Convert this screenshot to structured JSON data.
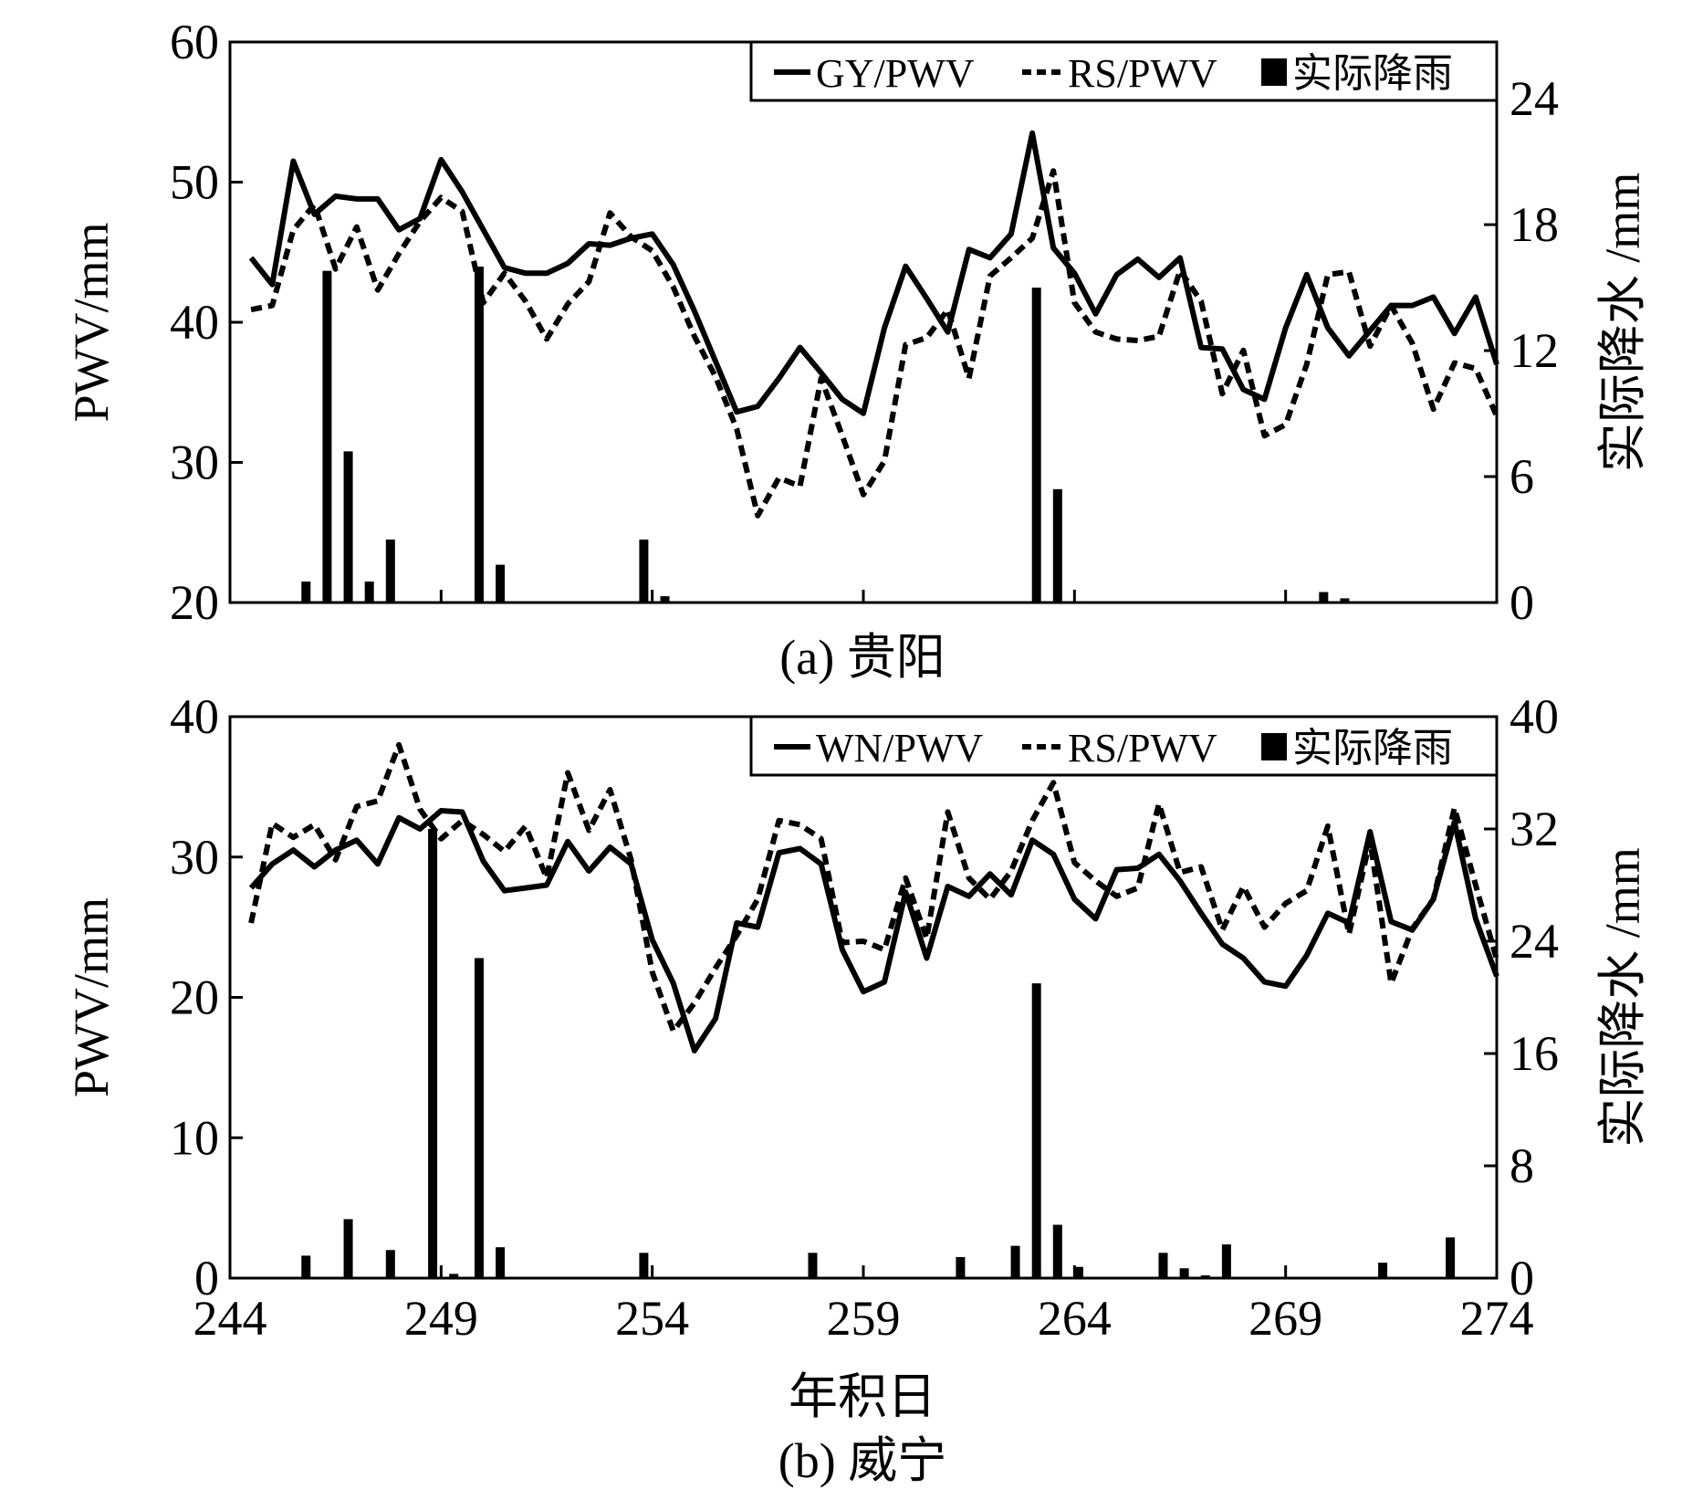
{
  "figure": {
    "x_axis_title": "年积日",
    "x_ticks": [
      "244",
      "249",
      "254",
      "259",
      "264",
      "269",
      "274"
    ]
  },
  "chart_data": [
    {
      "type": "line",
      "caption": "(a) 贵阳",
      "ylabel_left": "PWV/mm",
      "ylabel_right": "实际降水 /mm",
      "xlabel": "",
      "xlim": [
        244,
        274
      ],
      "ylim_left": [
        20,
        60
      ],
      "ylim_right": [
        0,
        26.7
      ],
      "y_ticks_left": [
        "20",
        "30",
        "40",
        "50",
        "60"
      ],
      "y_ticks_right": [
        "0",
        "6",
        "12",
        "18",
        "24"
      ],
      "legend_position": "top-right",
      "x": [
        244.5,
        245.0,
        245.5,
        246.0,
        246.5,
        247.0,
        247.5,
        248.0,
        248.5,
        249.0,
        249.5,
        250.0,
        250.5,
        251.0,
        251.5,
        252.0,
        252.5,
        253.0,
        253.5,
        254.0,
        254.5,
        255.0,
        255.5,
        256.0,
        256.5,
        257.0,
        257.5,
        258.0,
        258.5,
        259.0,
        259.5,
        260.0,
        260.5,
        261.0,
        261.5,
        262.0,
        262.5,
        263.0,
        263.5,
        264.0,
        264.5,
        265.0,
        265.5,
        266.0,
        266.5,
        267.0,
        267.5,
        268.0,
        268.5,
        269.0,
        269.5,
        270.0,
        270.5,
        271.0,
        271.5,
        272.0,
        272.5,
        273.0,
        273.5,
        274.0
      ],
      "series": [
        {
          "name": "GY/PWV",
          "style": "solid",
          "values": [
            44.6,
            42.7,
            51.5,
            47.7,
            49.0,
            48.8,
            48.8,
            46.6,
            47.4,
            51.6,
            49.3,
            46.6,
            43.9,
            43.5,
            43.5,
            44.2,
            45.6,
            45.5,
            46.0,
            46.3,
            44.1,
            40.8,
            37.2,
            33.6,
            34.0,
            36.0,
            38.2,
            36.4,
            34.5,
            33.5,
            39.6,
            44.0,
            41.7,
            39.3,
            45.2,
            44.6,
            46.3,
            53.5,
            45.3,
            43.5,
            40.6,
            43.4,
            44.5,
            43.2,
            44.6,
            38.2,
            38.1,
            35.2,
            34.5,
            39.6,
            43.4,
            39.6,
            37.6,
            39.4,
            41.2,
            41.2,
            41.8,
            39.2,
            41.8,
            37.0
          ]
        },
        {
          "name": "RS/PWV",
          "style": "dashed",
          "values": [
            40.9,
            41.2,
            46.6,
            48.4,
            43.8,
            46.8,
            42.3,
            44.9,
            47.2,
            48.9,
            47.9,
            41.4,
            43.5,
            41.5,
            38.8,
            41.3,
            42.9,
            47.8,
            46.1,
            45.1,
            42.5,
            39.0,
            36.1,
            32.4,
            26.2,
            28.9,
            28.3,
            36.0,
            31.9,
            27.7,
            30.1,
            38.4,
            38.9,
            40.9,
            36.0,
            43.3,
            44.6,
            46.0,
            50.8,
            41.4,
            39.3,
            38.8,
            38.7,
            39.0,
            43.7,
            41.5,
            34.9,
            38.0,
            31.9,
            32.7,
            37.0,
            43.4,
            43.6,
            38.3,
            41.2,
            38.5,
            33.8,
            37.1,
            36.7,
            33.3
          ]
        }
      ],
      "bars": {
        "name": "实际降雨",
        "x": [
          245.8,
          246.3,
          246.8,
          247.3,
          247.8,
          249.9,
          250.4,
          253.8,
          254.3,
          263.1,
          263.6,
          269.9,
          270.4
        ],
        "values": [
          1.0,
          15.8,
          7.2,
          1.0,
          3.0,
          16.0,
          1.8,
          3.0,
          0.3,
          15.0,
          5.4,
          0.5,
          0.2
        ]
      }
    },
    {
      "type": "line",
      "caption": "(b) 威宁",
      "ylabel_left": "PWV/mm",
      "ylabel_right": "实际降水 /mm",
      "xlabel": "年积日",
      "xlim": [
        244,
        274
      ],
      "ylim_left": [
        0,
        40
      ],
      "ylim_right": [
        0,
        40
      ],
      "y_ticks_left": [
        "0",
        "10",
        "20",
        "30",
        "40"
      ],
      "y_ticks_right": [
        "0",
        "8",
        "16",
        "24",
        "32",
        "40"
      ],
      "legend_position": "top-right",
      "x": [
        244.5,
        245.0,
        245.5,
        246.0,
        246.5,
        247.0,
        247.5,
        248.0,
        248.5,
        249.0,
        249.5,
        250.0,
        250.5,
        251.0,
        251.5,
        252.0,
        252.5,
        253.0,
        253.5,
        254.0,
        254.5,
        255.0,
        255.5,
        256.0,
        256.5,
        257.0,
        257.5,
        258.0,
        258.5,
        259.0,
        259.5,
        260.0,
        260.5,
        261.0,
        261.5,
        262.0,
        262.5,
        263.0,
        263.5,
        264.0,
        264.5,
        265.0,
        265.5,
        266.0,
        266.5,
        267.0,
        267.5,
        268.0,
        268.5,
        269.0,
        269.5,
        270.0,
        270.5,
        271.0,
        271.5,
        272.0,
        272.5,
        273.0,
        273.5,
        274.0
      ],
      "series": [
        {
          "name": "WN/PWV",
          "style": "solid",
          "values": [
            27.8,
            29.5,
            30.5,
            29.3,
            30.5,
            31.2,
            29.5,
            32.8,
            32.0,
            33.3,
            33.2,
            29.7,
            27.6,
            27.8,
            28.0,
            31.1,
            29.0,
            30.7,
            29.5,
            24.1,
            21.0,
            16.2,
            18.5,
            25.3,
            25.0,
            30.3,
            30.6,
            29.5,
            23.4,
            20.4,
            21.1,
            27.5,
            22.8,
            27.9,
            27.2,
            28.8,
            27.3,
            31.2,
            30.2,
            27.0,
            25.6,
            29.1,
            29.2,
            30.2,
            28.3,
            26.0,
            23.8,
            22.8,
            21.1,
            20.8,
            23.0,
            26.0,
            25.3,
            31.8,
            25.4,
            24.8,
            27.0,
            32.5,
            25.6,
            21.5
          ]
        },
        {
          "name": "RS/PWV",
          "style": "dashed",
          "values": [
            25.3,
            32.4,
            31.4,
            32.3,
            29.8,
            33.6,
            34.0,
            38.0,
            33.4,
            31.3,
            32.6,
            31.6,
            30.4,
            32.2,
            28.5,
            36.0,
            31.9,
            34.8,
            29.8,
            21.8,
            17.6,
            19.6,
            22.1,
            24.4,
            27.0,
            32.6,
            32.3,
            31.3,
            23.9,
            24.0,
            23.4,
            28.5,
            24.2,
            33.2,
            28.5,
            27.0,
            29.0,
            32.6,
            35.3,
            29.6,
            28.3,
            27.2,
            27.8,
            33.8,
            28.9,
            29.3,
            24.8,
            27.9,
            25.0,
            26.7,
            27.6,
            32.2,
            24.5,
            31.2,
            21.0,
            24.9,
            27.0,
            33.5,
            28.0,
            22.7
          ]
        }
      ],
      "bars": {
        "name": "实际降雨",
        "x": [
          245.8,
          246.8,
          247.8,
          248.8,
          249.3,
          249.9,
          250.4,
          253.8,
          257.8,
          261.3,
          262.6,
          263.1,
          263.6,
          264.1,
          266.1,
          266.6,
          267.1,
          267.6,
          271.3,
          272.9
        ],
        "values": [
          1.6,
          4.2,
          2.0,
          32.0,
          0.3,
          22.8,
          2.2,
          1.8,
          1.8,
          1.5,
          2.3,
          21.0,
          3.8,
          0.8,
          1.8,
          0.7,
          0.2,
          2.4,
          1.1,
          2.9
        ]
      }
    }
  ]
}
